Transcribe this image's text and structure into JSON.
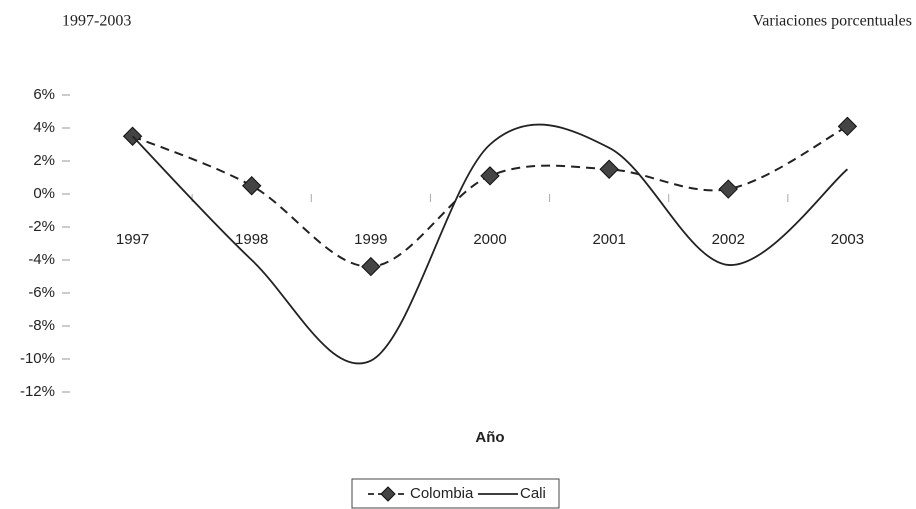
{
  "chart_data": {
    "type": "line",
    "title_left": "1997-2003",
    "title_right": "Variaciones porcentuales",
    "x_label": "Año",
    "categories": [
      "1997",
      "1998",
      "1999",
      "2000",
      "2001",
      "2002",
      "2003"
    ],
    "series": [
      {
        "name": "Colombia",
        "color": "#222222",
        "dashed": true,
        "marker": "diamond",
        "smooth": true,
        "values": [
          3.5,
          0.5,
          -4.4,
          1.1,
          1.5,
          0.3,
          4.1
        ]
      },
      {
        "name": "Cali",
        "color": "#222222",
        "dashed": false,
        "marker": null,
        "smooth": true,
        "values": [
          3.5,
          -4.0,
          -10.1,
          3.0,
          2.8,
          -4.3,
          1.5
        ]
      }
    ],
    "ylim": [
      -12,
      6
    ],
    "yticks": [
      {
        "value": -12,
        "label": "-12%"
      },
      {
        "value": -10,
        "label": "-10%"
      },
      {
        "value": -8,
        "label": "-8%"
      },
      {
        "value": -6,
        "label": "-6%"
      },
      {
        "value": -4,
        "label": "-4%"
      },
      {
        "value": -2,
        "label": "-2%"
      },
      {
        "value": 0,
        "label": "0%"
      },
      {
        "value": 2,
        "label": "2%"
      },
      {
        "value": 4,
        "label": "4%"
      },
      {
        "value": 6,
        "label": "6%"
      }
    ],
    "grid": false,
    "legend": "bottom"
  }
}
